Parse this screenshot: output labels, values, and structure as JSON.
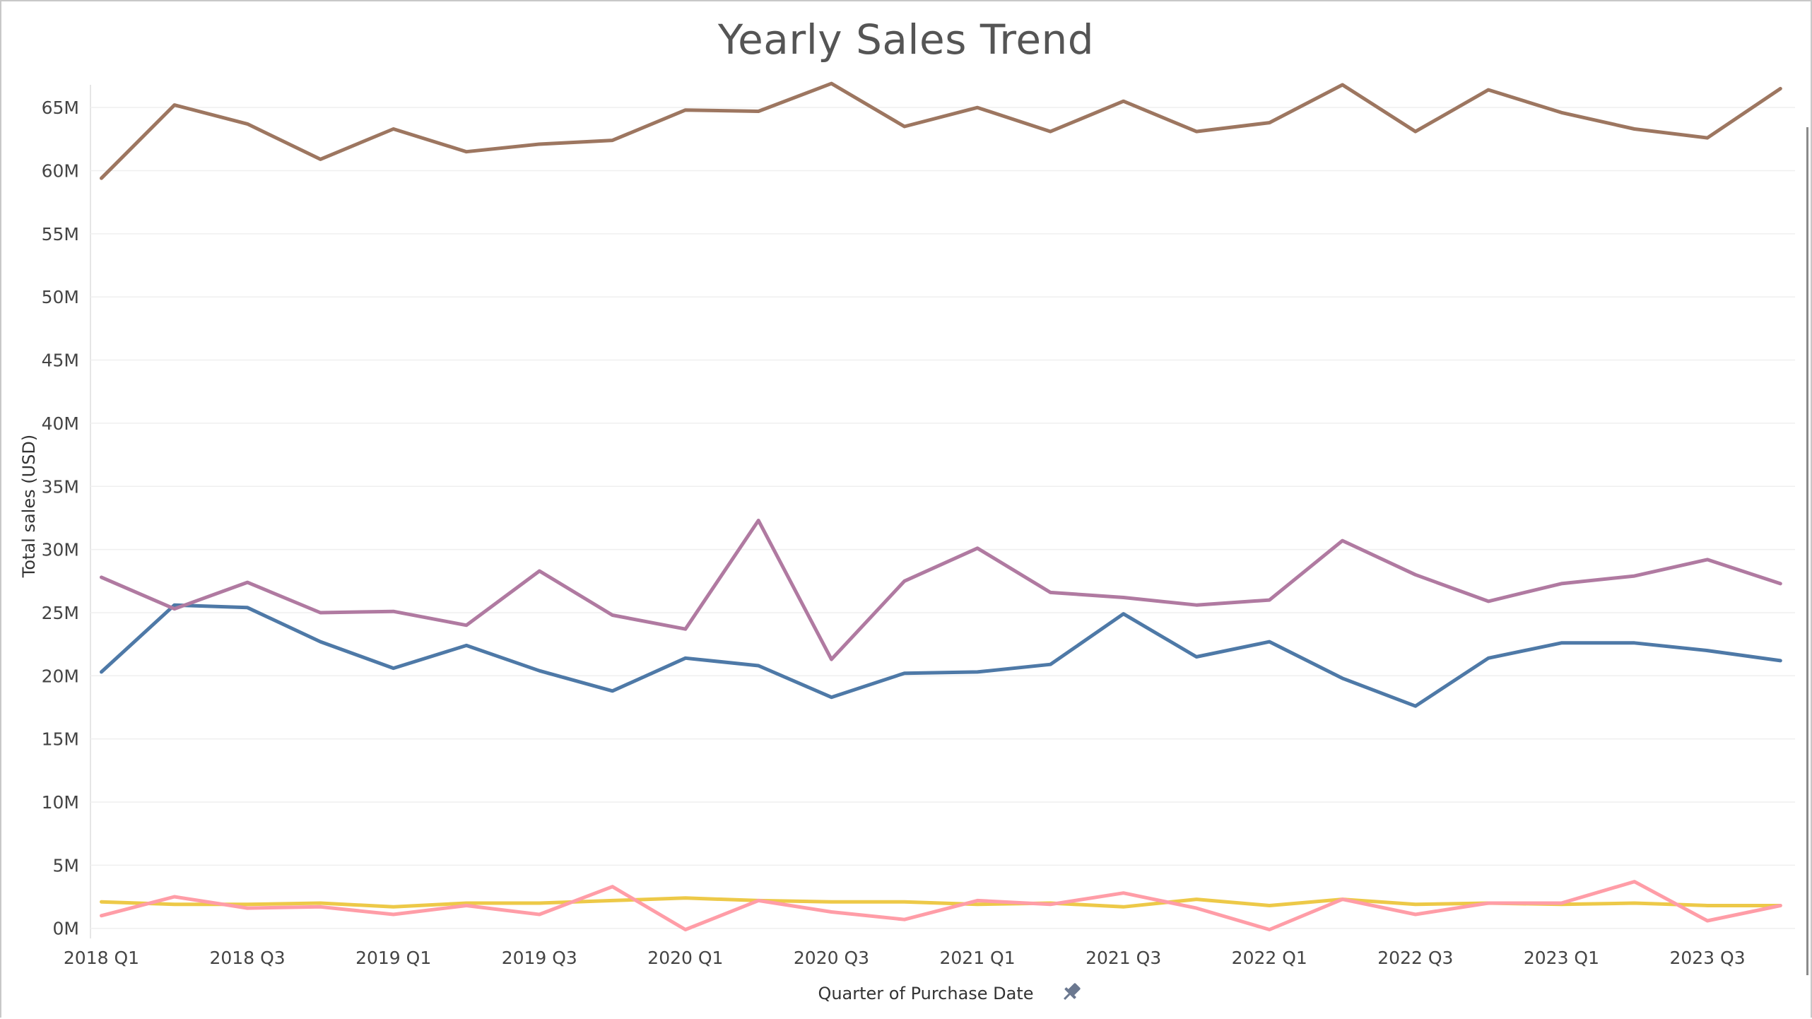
{
  "chart_data": {
    "type": "line",
    "title": "Yearly Sales Trend",
    "xlabel": "Quarter of Purchase Date",
    "ylabel": "Total sales (USD)",
    "x_tick_labels": [
      "2018 Q1",
      "2018 Q3",
      "2019 Q1",
      "2019 Q3",
      "2020 Q1",
      "2020 Q3",
      "2021 Q1",
      "2021 Q3",
      "2022 Q1",
      "2022 Q3",
      "2023 Q1",
      "2023 Q3"
    ],
    "y_tick_labels": [
      "0M",
      "5M",
      "10M",
      "15M",
      "20M",
      "25M",
      "30M",
      "35M",
      "40M",
      "45M",
      "50M",
      "55M",
      "60M",
      "65M"
    ],
    "y_ticks": [
      0,
      5,
      10,
      15,
      20,
      25,
      30,
      35,
      40,
      45,
      50,
      55,
      60,
      65
    ],
    "ylim": [
      -0.8,
      66.8
    ],
    "xlim": [
      0.85,
      24.2
    ],
    "grid": true,
    "legend": "none",
    "x": [
      "2018 Q1",
      "2018 Q2",
      "2018 Q3",
      "2018 Q4",
      "2019 Q1",
      "2019 Q2",
      "2019 Q3",
      "2019 Q4",
      "2020 Q1",
      "2020 Q2",
      "2020 Q3",
      "2020 Q4",
      "2021 Q1",
      "2021 Q2",
      "2021 Q3",
      "2021 Q4",
      "2022 Q1",
      "2022 Q2",
      "2022 Q3",
      "2022 Q4",
      "2023 Q1",
      "2023 Q2",
      "2023 Q3",
      "2023 Q4"
    ],
    "series": [
      {
        "color": "#9d7660",
        "values": [
          59.4,
          65.2,
          63.7,
          60.9,
          63.3,
          61.5,
          62.1,
          62.4,
          64.8,
          64.7,
          66.9,
          63.5,
          65.0,
          63.1,
          65.5,
          63.1,
          63.8,
          66.8,
          63.1,
          66.4,
          64.6,
          63.3,
          62.6,
          66.5
        ]
      },
      {
        "color": "#b07aa1",
        "values": [
          27.8,
          25.3,
          27.4,
          25.0,
          25.1,
          24.0,
          28.3,
          24.8,
          23.7,
          32.3,
          21.3,
          27.5,
          30.1,
          26.6,
          26.2,
          25.6,
          26.0,
          30.7,
          28.0,
          25.9,
          27.3,
          27.9,
          29.2,
          27.3
        ]
      },
      {
        "color": "#4e79a7",
        "values": [
          20.3,
          25.6,
          25.4,
          22.7,
          20.6,
          22.4,
          20.4,
          18.8,
          21.4,
          20.8,
          18.3,
          20.2,
          20.3,
          20.9,
          24.9,
          21.5,
          22.7,
          19.8,
          17.6,
          21.4,
          22.6,
          22.6,
          22.0,
          21.2
        ]
      },
      {
        "color": "#ff9da7",
        "values": [
          1.0,
          2.5,
          1.6,
          1.7,
          1.1,
          1.8,
          1.1,
          3.3,
          -0.1,
          2.2,
          1.3,
          0.7,
          2.2,
          1.9,
          2.8,
          1.6,
          -0.1,
          2.3,
          1.1,
          2.0,
          2.0,
          3.7,
          0.6,
          1.8
        ]
      },
      {
        "color": "#edc948",
        "values": [
          2.1,
          1.9,
          1.9,
          2.0,
          1.7,
          2.0,
          2.0,
          2.2,
          2.4,
          2.2,
          2.1,
          2.1,
          1.9,
          2.0,
          1.7,
          2.3,
          1.8,
          2.3,
          1.9,
          2.0,
          1.9,
          2.0,
          1.8,
          1.8
        ]
      }
    ]
  }
}
